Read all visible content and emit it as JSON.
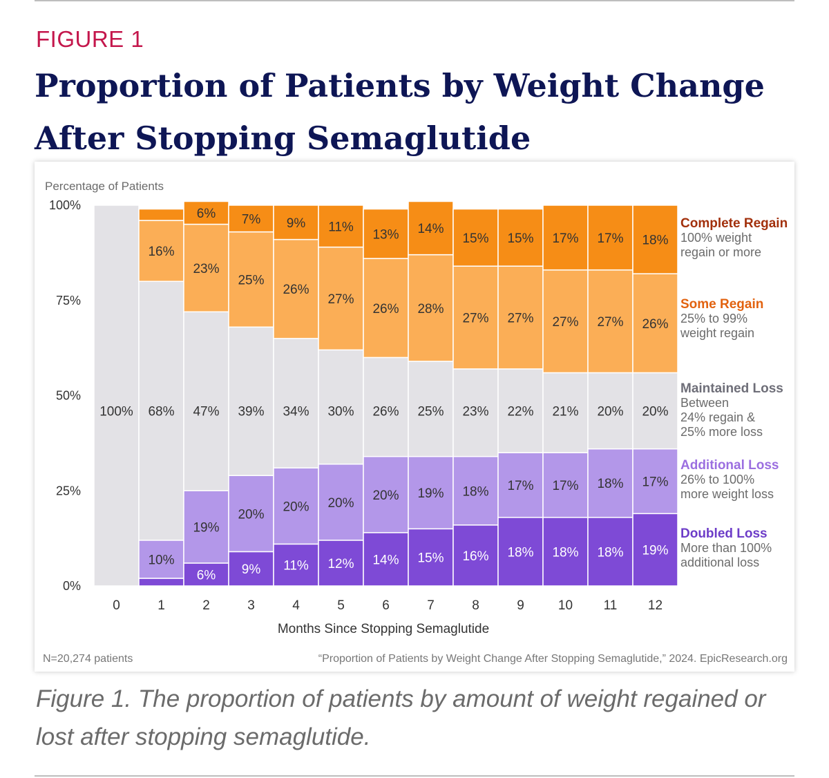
{
  "header": {
    "figure_label": "FIGURE 1",
    "title": "Proportion of Patients by Weight Change After Stopping Semaglutide"
  },
  "caption": "Figure 1. The proportion of patients by amount of weight regained or lost after stopping semaglutide.",
  "footer": {
    "n_note": "N=20,274 patients",
    "source": "“Proportion of Patients by Weight Change After Stopping Semaglutide,” 2024. EpicResearch.org"
  },
  "colors": {
    "complete_regain": "#f68d16",
    "some_regain": "#fbae56",
    "maintained_loss": "#e3e2e6",
    "additional_loss": "#b397e9",
    "doubled_loss": "#7e4ad6"
  },
  "chart_data": {
    "type": "bar",
    "stacked": true,
    "xlabel": "Months Since Stopping Semaglutide",
    "ylabel": "Percentage of Patients",
    "ylim": [
      0,
      100
    ],
    "yticks": [
      "0%",
      "25%",
      "50%",
      "75%",
      "100%"
    ],
    "categories": [
      "0",
      "1",
      "2",
      "3",
      "4",
      "5",
      "6",
      "7",
      "8",
      "9",
      "10",
      "11",
      "12"
    ],
    "series": [
      {
        "name": "Doubled Loss",
        "description": "More than 100% additional loss",
        "color": "#7e4ad6",
        "values": [
          0,
          2,
          6,
          9,
          11,
          12,
          14,
          15,
          16,
          18,
          18,
          18,
          19
        ],
        "labels": [
          "",
          "",
          "6%",
          "9%",
          "11%",
          "12%",
          "14%",
          "15%",
          "16%",
          "18%",
          "18%",
          "18%",
          "19%"
        ]
      },
      {
        "name": "Additional Loss",
        "description": "26% to 100% more weight loss",
        "color": "#b397e9",
        "values": [
          0,
          10,
          19,
          20,
          20,
          20,
          20,
          19,
          18,
          17,
          17,
          18,
          17
        ],
        "labels": [
          "",
          "10%",
          "19%",
          "20%",
          "20%",
          "20%",
          "20%",
          "19%",
          "18%",
          "17%",
          "17%",
          "18%",
          "17%"
        ]
      },
      {
        "name": "Maintained Loss",
        "description": "Between 24% regain & 25% more loss",
        "color": "#e3e2e6",
        "values": [
          100,
          68,
          47,
          39,
          34,
          30,
          26,
          25,
          23,
          22,
          21,
          20,
          20
        ],
        "labels": [
          "100%",
          "68%",
          "47%",
          "39%",
          "34%",
          "30%",
          "26%",
          "25%",
          "23%",
          "22%",
          "21%",
          "20%",
          "20%"
        ]
      },
      {
        "name": "Some Regain",
        "description": "25% to 99% weight regain",
        "color": "#fbae56",
        "values": [
          0,
          16,
          23,
          25,
          26,
          27,
          26,
          28,
          27,
          27,
          27,
          27,
          26
        ],
        "labels": [
          "",
          "16%",
          "23%",
          "25%",
          "26%",
          "27%",
          "26%",
          "28%",
          "27%",
          "27%",
          "27%",
          "27%",
          "26%"
        ]
      },
      {
        "name": "Complete Regain",
        "description": "100% weight regain or more",
        "color": "#f68d16",
        "values": [
          0,
          3,
          6,
          7,
          9,
          11,
          13,
          14,
          15,
          15,
          17,
          17,
          18
        ],
        "labels": [
          "",
          "",
          "6%",
          "7%",
          "9%",
          "11%",
          "13%",
          "14%",
          "15%",
          "15%",
          "17%",
          "17%",
          "18%"
        ]
      }
    ],
    "legend": [
      {
        "name": "Complete Regain",
        "lines": [
          "100% weight",
          "regain or more"
        ],
        "name_color": "#a2300c"
      },
      {
        "name": "Some Regain",
        "lines": [
          "25% to 99%",
          "weight regain"
        ],
        "name_color": "#e2620f"
      },
      {
        "name": "Maintained Loss",
        "lines": [
          "Between",
          "24% regain &",
          "25% more loss"
        ],
        "name_color": "#6e6e78"
      },
      {
        "name": "Additional Loss",
        "lines": [
          "26% to 100%",
          "more weight loss"
        ],
        "name_color": "#9b6ee0"
      },
      {
        "name": "Doubled Loss",
        "lines": [
          "More than 100%",
          "additional loss"
        ],
        "name_color": "#6d3dc8"
      }
    ]
  }
}
